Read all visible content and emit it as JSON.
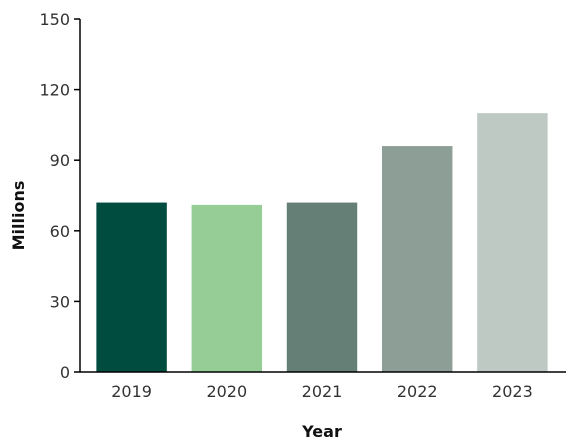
{
  "chart_data": {
    "type": "bar",
    "title": "",
    "xlabel": "Year",
    "ylabel": "Millions",
    "categories": [
      "2019",
      "2020",
      "2021",
      "2022",
      "2023"
    ],
    "values": [
      72,
      71,
      72,
      96,
      110
    ],
    "colors": [
      "#004d40",
      "#96cc96",
      "#657e76",
      "#8d9e97",
      "#bfc9c4"
    ],
    "ylim": [
      0,
      150
    ],
    "yticks": [
      0,
      30,
      60,
      90,
      120,
      150
    ],
    "grid": false,
    "legend": "none"
  }
}
